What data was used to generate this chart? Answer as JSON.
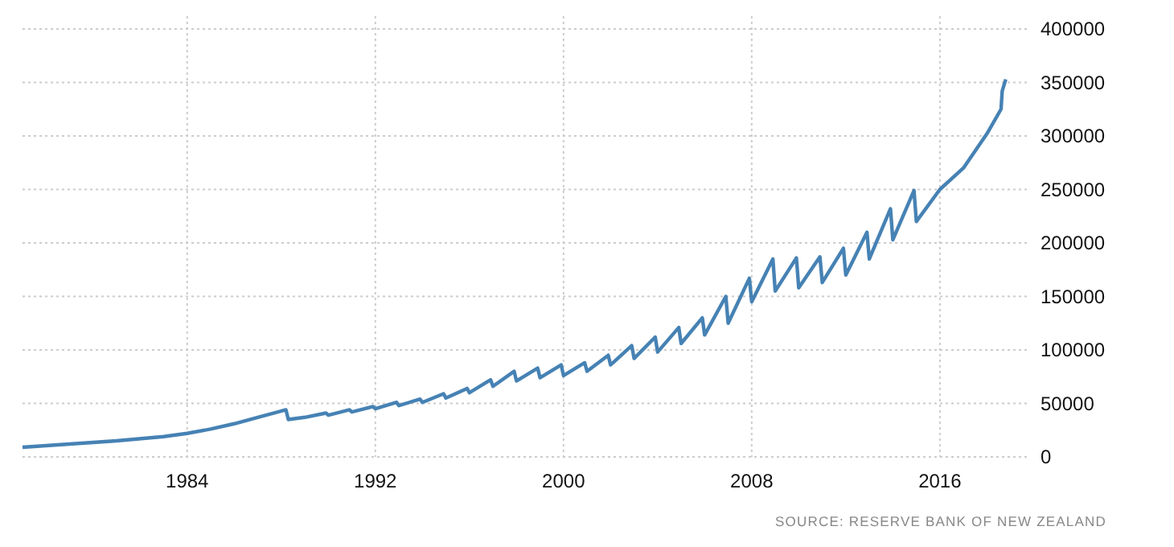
{
  "chart_data": {
    "type": "line",
    "x": [
      1977,
      1979,
      1981,
      1983,
      1984,
      1985,
      1986,
      1987,
      1988.2,
      1988.3,
      1989,
      1989.9,
      1990,
      1990.9,
      1991,
      1991.9,
      1992,
      1992.9,
      1993,
      1993.9,
      1994,
      1994.9,
      1995,
      1995.9,
      1996,
      1996.9,
      1997,
      1997.9,
      1998,
      1998.9,
      1999,
      1999.9,
      2000,
      2000.9,
      2001,
      2001.9,
      2002,
      2002.9,
      2003,
      2003.9,
      2004,
      2004.9,
      2005,
      2005.9,
      2006,
      2006.9,
      2007,
      2007.9,
      2008,
      2008.9,
      2009,
      2009.9,
      2010,
      2010.9,
      2011,
      2011.9,
      2012,
      2012.9,
      2013,
      2013.9,
      2014,
      2014.9,
      2015,
      2016,
      2017,
      2018,
      2018.6,
      2018.65,
      2018.8
    ],
    "series": [
      {
        "color": "#4682b4",
        "values": [
          9000,
          12000,
          15000,
          19000,
          22000,
          26000,
          31000,
          37000,
          44000,
          35000,
          37000,
          41000,
          39000,
          44000,
          42000,
          47000,
          45000,
          51000,
          48000,
          54000,
          51000,
          59000,
          55000,
          64000,
          60000,
          72000,
          66000,
          80000,
          71000,
          83000,
          74000,
          86000,
          76000,
          88000,
          80000,
          95000,
          86000,
          104000,
          92000,
          112000,
          98000,
          121000,
          106000,
          130000,
          114000,
          150000,
          125000,
          167000,
          145000,
          185000,
          155000,
          186000,
          158000,
          187000,
          163000,
          195000,
          170000,
          210000,
          185000,
          232000,
          203000,
          249000,
          220000,
          250000,
          270000,
          302000,
          325000,
          342000,
          353000
        ]
      }
    ],
    "xlim": [
      1977,
      2019.8
    ],
    "xticks": [
      1984,
      1992,
      2000,
      2008,
      2016
    ],
    "ylim": [
      0,
      400000
    ],
    "yticks": [
      0,
      50000,
      100000,
      150000,
      200000,
      250000,
      300000,
      350000,
      400000
    ],
    "grid": true,
    "line_style": "solid",
    "annotations": [
      "SOURCE: RESERVE BANK OF NEW ZEALAND"
    ]
  }
}
